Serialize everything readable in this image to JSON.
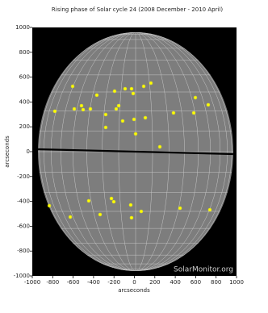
{
  "chart_data": {
    "type": "scatter",
    "title": "Rising phase of Solar cycle 24 (2008 December - 2010 April)",
    "x_label": "arcseconds",
    "y_label": "arcseconds",
    "watermark": "SolarMonitor.org",
    "color": "#ffff00",
    "xlim": [
      -1000,
      1000
    ],
    "ylim": [
      -1000,
      1000
    ],
    "xticks": [
      -1000,
      -800,
      -600,
      -400,
      -200,
      0,
      200,
      400,
      600,
      800,
      1000
    ],
    "yticks": [
      -1000,
      -800,
      -600,
      -400,
      -200,
      0,
      200,
      400,
      600,
      800,
      1000
    ],
    "x": [
      -605,
      -779,
      -589,
      -518,
      -502,
      -431,
      -368,
      -281,
      -281,
      -194,
      -178,
      -154,
      -91,
      -28,
      -12,
      -115,
      -4,
      91,
      162,
      107,
      12,
      249,
      383,
      597,
      723,
      581,
      -834,
      -628,
      -447,
      -336,
      -225,
      -202,
      -36,
      -28,
      67,
      447,
      739
    ],
    "values": [
      526,
      325,
      344,
      370,
      338,
      344,
      455,
      299,
      195,
      487,
      344,
      370,
      506,
      506,
      468,
      247,
      260,
      526,
      552,
      273,
      143,
      39,
      312,
      435,
      377,
      312,
      -435,
      -526,
      -396,
      -506,
      -377,
      -403,
      -429,
      -532,
      -481,
      -455,
      -468
    ]
  }
}
